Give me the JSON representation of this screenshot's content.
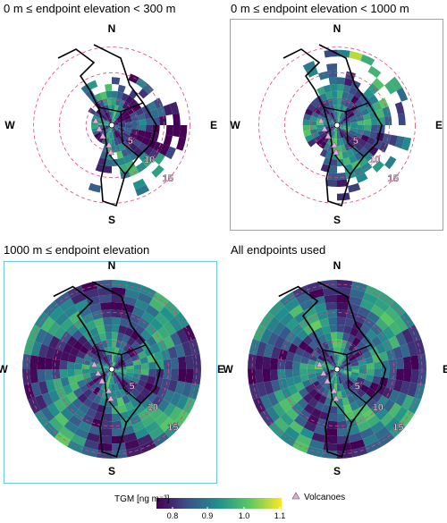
{
  "panels": [
    {
      "title": "0 m ≤ endpoint elevation < 300 m",
      "frame": "none",
      "frame_color": "",
      "coverage": "coastal"
    },
    {
      "title": "0 m ≤ endpoint elevation < 1000 m",
      "frame": "highlight",
      "frame_color": "#f08080",
      "coverage": "partial"
    },
    {
      "title": "1000 m ≤ endpoint elevation",
      "frame": "highlight",
      "frame_color": "#6ec6e6",
      "coverage": "full"
    },
    {
      "title": "All endpoints used",
      "frame": "none",
      "frame_color": "",
      "coverage": "full"
    }
  ],
  "compass": {
    "north": "N",
    "south": "S",
    "east": "E",
    "west": "W"
  },
  "range_rings": [
    "5",
    "10",
    "15"
  ],
  "colorbar": {
    "title": "TGM [ng m⁻³]",
    "ticks": [
      "0.8",
      "0.9",
      "1.0",
      "1.1"
    ],
    "range": [
      0.75,
      1.1
    ],
    "palette": [
      "#440154",
      "#3b528b",
      "#21918c",
      "#5ec962",
      "#fde725"
    ]
  },
  "legend": {
    "volcano_label": "Volcanoes",
    "volcano_color": "#e7a8e0"
  },
  "chart_data": {
    "type": "heatmap",
    "description_type": "polar grid of mean TGM by back-trajectory endpoint, four panels",
    "value_range": [
      0.75,
      1.1
    ],
    "units": "ng m-3"
  }
}
